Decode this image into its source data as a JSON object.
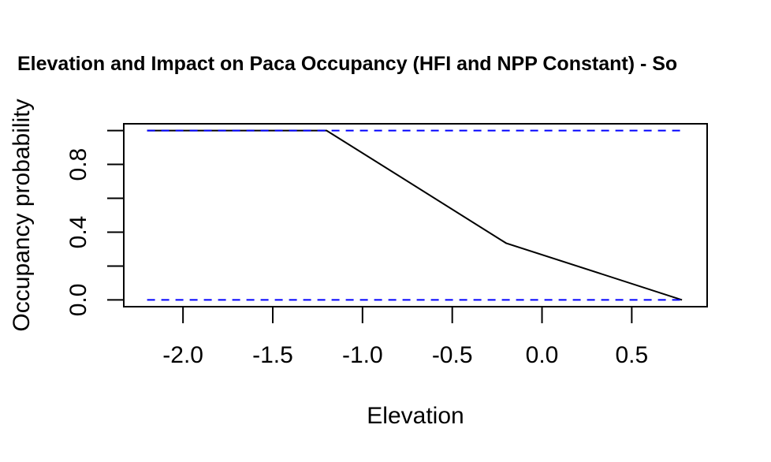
{
  "chart_data": {
    "type": "line",
    "title": "Elevation and Impact on Paca Occupancy (HFI and NPP Constant) - So",
    "xlabel": "Elevation",
    "ylabel": "Occupancy probability",
    "xlim": [
      -2.33,
      0.92
    ],
    "ylim": [
      -0.04,
      1.04
    ],
    "xticks": [
      -2.0,
      -1.5,
      -1.0,
      -0.5,
      0.0,
      0.5
    ],
    "xtick_labels": [
      "-2.0",
      "-1.5",
      "-1.0",
      "-0.5",
      "0.0",
      "0.5"
    ],
    "yticks": [
      0.0,
      0.2,
      0.4,
      0.6,
      0.8,
      1.0
    ],
    "ytick_labels": [
      "0.0",
      "",
      "0.4",
      "",
      "0.8",
      ""
    ],
    "grid": false,
    "series": [
      {
        "style": "solid",
        "color": "#000000",
        "x": [
          -2.2,
          -1.2,
          -0.2,
          0.78
        ],
        "y": [
          1.0,
          1.0,
          0.335,
          0.0
        ]
      },
      {
        "style": "dashed",
        "color": "#0000ff",
        "x": [
          -2.2,
          0.78
        ],
        "y": [
          1.0,
          1.0
        ]
      },
      {
        "style": "dashed",
        "color": "#0000ff",
        "x": [
          -2.2,
          0.78
        ],
        "y": [
          0.0,
          0.0
        ]
      }
    ]
  }
}
